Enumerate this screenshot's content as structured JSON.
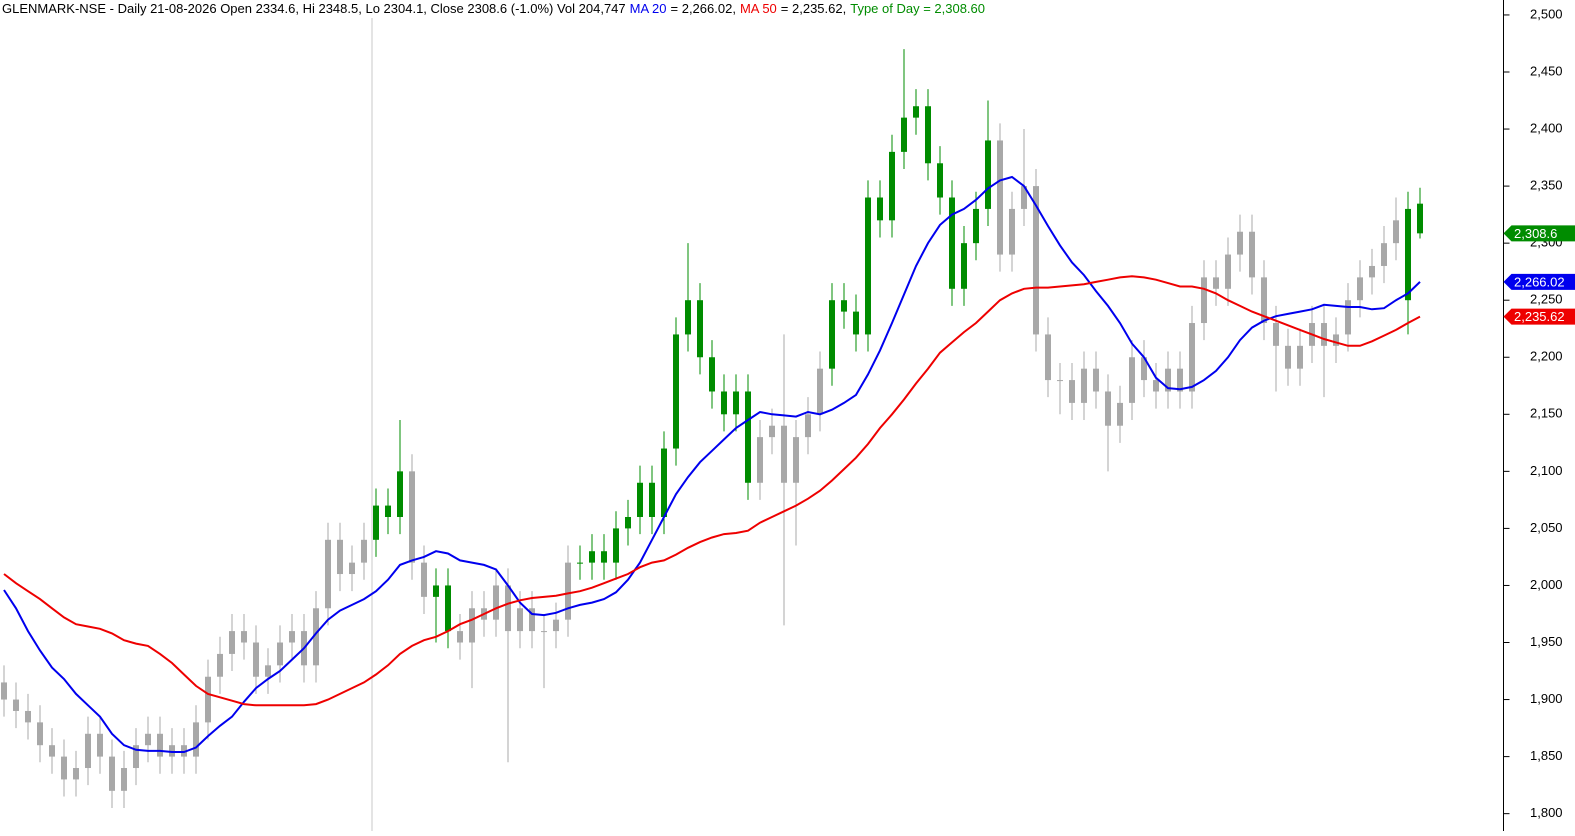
{
  "chart_data": {
    "type": "candlestick",
    "title": "GLENMARK-NSE - Daily 21-08-2026 Open 2334.6, Hi 2348.5, Lo 2304.1, Close 2308.6 (-1.0%) Vol 204,747",
    "type_of_day_label": "Type of Day = 2,308.60",
    "type_of_day_color": "#008c00",
    "open": [
      1915,
      1900,
      1890,
      1880,
      1860,
      1850,
      1830,
      1840,
      1870,
      1850,
      1820,
      1840,
      1860,
      1870,
      1850,
      1860,
      1850,
      1880,
      1920,
      1940,
      1960,
      1950,
      1920,
      1930,
      1950,
      1960,
      1930,
      1980,
      2040,
      2010,
      2020,
      2040,
      2070,
      2060,
      2100,
      2020,
      1990,
      2000,
      1960,
      1950,
      1980,
      1970,
      2000,
      1960,
      1980,
      1960,
      1960,
      1970,
      2020,
      2020,
      2030,
      2020,
      2050,
      2060,
      2090,
      2060,
      2120,
      2220,
      2250,
      2200,
      2170,
      2150,
      2170,
      2090,
      2130,
      2140,
      2090,
      2130,
      2150,
      2190,
      2250,
      2240,
      2220,
      2340,
      2320,
      2380,
      2410,
      2420,
      2370,
      2340,
      2260,
      2300,
      2330,
      2390,
      2290,
      2330,
      2350,
      2220,
      2180,
      2180,
      2160,
      2190,
      2170,
      2140,
      2160,
      2200,
      2180,
      2170,
      2190,
      2170,
      2230,
      2270,
      2260,
      2290,
      2310,
      2270,
      2230,
      2210,
      2190,
      2210,
      2230,
      2210,
      2220,
      2250,
      2270,
      2280,
      2300,
      2250,
      2334.6
    ],
    "high": [
      1930,
      1915,
      1905,
      1895,
      1875,
      1865,
      1855,
      1885,
      1885,
      1865,
      1855,
      1875,
      1885,
      1885,
      1875,
      1875,
      1895,
      1935,
      1955,
      1975,
      1975,
      1965,
      1945,
      1965,
      1975,
      1975,
      1995,
      2055,
      2055,
      2035,
      2055,
      2085,
      2085,
      2145,
      2115,
      2035,
      2015,
      2015,
      1975,
      1995,
      1995,
      2015,
      2015,
      1995,
      1995,
      1975,
      1985,
      2035,
      2035,
      2045,
      2045,
      2065,
      2075,
      2105,
      2105,
      2135,
      2235,
      2300,
      2265,
      2215,
      2185,
      2185,
      2185,
      2145,
      2155,
      2220,
      2145,
      2165,
      2205,
      2265,
      2265,
      2255,
      2355,
      2355,
      2395,
      2470,
      2435,
      2435,
      2385,
      2355,
      2315,
      2345,
      2425,
      2405,
      2345,
      2400,
      2365,
      2235,
      2195,
      2195,
      2205,
      2205,
      2185,
      2175,
      2215,
      2215,
      2195,
      2205,
      2205,
      2245,
      2285,
      2285,
      2305,
      2325,
      2325,
      2285,
      2245,
      2225,
      2225,
      2245,
      2245,
      2235,
      2265,
      2285,
      2295,
      2315,
      2340,
      2345,
      2348.5
    ],
    "low": [
      1885,
      1875,
      1865,
      1845,
      1835,
      1815,
      1815,
      1825,
      1835,
      1805,
      1805,
      1825,
      1845,
      1835,
      1835,
      1835,
      1835,
      1865,
      1905,
      1925,
      1935,
      1905,
      1905,
      1915,
      1935,
      1915,
      1915,
      1965,
      1995,
      1995,
      2005,
      2025,
      2045,
      2045,
      2005,
      1975,
      1950,
      1945,
      1935,
      1910,
      1955,
      1955,
      1845,
      1945,
      1945,
      1910,
      1945,
      1955,
      2005,
      2005,
      2005,
      2005,
      2035,
      2045,
      2045,
      2045,
      2105,
      2205,
      2185,
      2155,
      2135,
      2135,
      2075,
      2075,
      2115,
      1965,
      2035,
      2115,
      2135,
      2175,
      2225,
      2205,
      2205,
      2305,
      2305,
      2365,
      2395,
      2355,
      2325,
      2245,
      2245,
      2285,
      2315,
      2275,
      2275,
      2315,
      2205,
      2165,
      2150,
      2145,
      2145,
      2155,
      2100,
      2125,
      2145,
      2165,
      2155,
      2155,
      2155,
      2155,
      2215,
      2245,
      2245,
      2275,
      2255,
      2215,
      2170,
      2175,
      2175,
      2195,
      2165,
      2195,
      2205,
      2235,
      2255,
      2265,
      2285,
      2220,
      2304.1
    ],
    "close": [
      1900,
      1890,
      1880,
      1860,
      1850,
      1830,
      1840,
      1870,
      1850,
      1820,
      1840,
      1860,
      1870,
      1850,
      1860,
      1850,
      1880,
      1920,
      1940,
      1960,
      1950,
      1920,
      1930,
      1950,
      1960,
      1930,
      1980,
      2040,
      2010,
      2020,
      2040,
      2070,
      2060,
      2100,
      2020,
      1990,
      2000,
      1960,
      1950,
      1980,
      1970,
      2000,
      1960,
      1980,
      1960,
      1960,
      1970,
      2020,
      2020,
      2030,
      2020,
      2050,
      2060,
      2090,
      2060,
      2120,
      2220,
      2250,
      2200,
      2170,
      2150,
      2170,
      2090,
      2130,
      2140,
      2090,
      2130,
      2150,
      2190,
      2250,
      2240,
      2220,
      2340,
      2320,
      2380,
      2410,
      2420,
      2370,
      2340,
      2260,
      2300,
      2330,
      2390,
      2290,
      2330,
      2350,
      2220,
      2180,
      2180,
      2160,
      2190,
      2170,
      2140,
      2160,
      2200,
      2180,
      2170,
      2190,
      2170,
      2230,
      2270,
      2260,
      2290,
      2310,
      2270,
      2230,
      2210,
      2190,
      2210,
      2230,
      2210,
      2220,
      2250,
      2270,
      2280,
      2300,
      2320,
      2330,
      2308.6
    ],
    "colors": [
      "#a8a8a8",
      "#a8a8a8",
      "#a8a8a8",
      "#a8a8a8",
      "#a8a8a8",
      "#a8a8a8",
      "#a8a8a8",
      "#a8a8a8",
      "#a8a8a8",
      "#a8a8a8",
      "#a8a8a8",
      "#a8a8a8",
      "#a8a8a8",
      "#a8a8a8",
      "#a8a8a8",
      "#a8a8a8",
      "#a8a8a8",
      "#a8a8a8",
      "#a8a8a8",
      "#a8a8a8",
      "#a8a8a8",
      "#a8a8a8",
      "#a8a8a8",
      "#a8a8a8",
      "#a8a8a8",
      "#a8a8a8",
      "#a8a8a8",
      "#a8a8a8",
      "#a8a8a8",
      "#a8a8a8",
      "#a8a8a8",
      "#008c00",
      "#008c00",
      "#008c00",
      "#a8a8a8",
      "#a8a8a8",
      "#008c00",
      "#008c00",
      "#a8a8a8",
      "#a8a8a8",
      "#a8a8a8",
      "#a8a8a8",
      "#a8a8a8",
      "#a8a8a8",
      "#a8a8a8",
      "#a8a8a8",
      "#a8a8a8",
      "#a8a8a8",
      "#008c00",
      "#008c00",
      "#008c00",
      "#008c00",
      "#008c00",
      "#008c00",
      "#008c00",
      "#008c00",
      "#008c00",
      "#008c00",
      "#008c00",
      "#008c00",
      "#008c00",
      "#008c00",
      "#008c00",
      "#a8a8a8",
      "#a8a8a8",
      "#a8a8a8",
      "#a8a8a8",
      "#a8a8a8",
      "#a8a8a8",
      "#008c00",
      "#008c00",
      "#008c00",
      "#008c00",
      "#008c00",
      "#008c00",
      "#008c00",
      "#008c00",
      "#008c00",
      "#008c00",
      "#008c00",
      "#008c00",
      "#008c00",
      "#008c00",
      "#a8a8a8",
      "#a8a8a8",
      "#a8a8a8",
      "#a8a8a8",
      "#a8a8a8",
      "#a8a8a8",
      "#a8a8a8",
      "#a8a8a8",
      "#a8a8a8",
      "#a8a8a8",
      "#a8a8a8",
      "#a8a8a8",
      "#a8a8a8",
      "#a8a8a8",
      "#a8a8a8",
      "#a8a8a8",
      "#a8a8a8",
      "#a8a8a8",
      "#a8a8a8",
      "#a8a8a8",
      "#a8a8a8",
      "#a8a8a8",
      "#a8a8a8",
      "#a8a8a8",
      "#a8a8a8",
      "#a8a8a8",
      "#a8a8a8",
      "#a8a8a8",
      "#a8a8a8",
      "#a8a8a8",
      "#a8a8a8",
      "#a8a8a8",
      "#a8a8a8",
      "#a8a8a8",
      "#008c00",
      "#008c00"
    ],
    "series": [
      {
        "name": "MA 20",
        "color": "#0000ee",
        "header_label": "= 2,266.02,",
        "values": [
          1996,
          1980,
          1960,
          1943,
          1928,
          1918,
          1905,
          1895,
          1885,
          1870,
          1860,
          1856,
          1855,
          1855,
          1854,
          1854,
          1858,
          1868,
          1877,
          1885,
          1898,
          1910,
          1918,
          1925,
          1935,
          1945,
          1958,
          1970,
          1978,
          1983,
          1988,
          1995,
          2005,
          2018,
          2022,
          2025,
          2030,
          2028,
          2022,
          2020,
          2018,
          2014,
          2000,
          1985,
          1975,
          1974,
          1976,
          1980,
          1983,
          1985,
          1988,
          1994,
          2005,
          2020,
          2040,
          2060,
          2080,
          2095,
          2108,
          2118,
          2128,
          2138,
          2145,
          2152,
          2150,
          2149,
          2148,
          2152,
          2150,
          2154,
          2160,
          2167,
          2185,
          2206,
          2230,
          2255,
          2280,
          2300,
          2316,
          2325,
          2330,
          2338,
          2348,
          2355,
          2358,
          2350,
          2333,
          2315,
          2298,
          2283,
          2272,
          2258,
          2245,
          2230,
          2212,
          2200,
          2182,
          2173,
          2172,
          2174,
          2180,
          2188,
          2200,
          2215,
          2226,
          2232,
          2236,
          2238,
          2240,
          2242,
          2246,
          2245,
          2244,
          2244,
          2242,
          2243,
          2250,
          2256,
          2266.02
        ]
      },
      {
        "name": "MA 50",
        "color": "#ee0000",
        "header_label": "= 2,235.62,",
        "values": [
          2010,
          2002,
          1995,
          1988,
          1980,
          1972,
          1966,
          1964,
          1962,
          1958,
          1952,
          1949,
          1947,
          1940,
          1932,
          1922,
          1912,
          1905,
          1902,
          1899,
          1896,
          1895,
          1895,
          1895,
          1895,
          1895,
          1896,
          1900,
          1905,
          1910,
          1915,
          1922,
          1930,
          1940,
          1947,
          1952,
          1955,
          1960,
          1966,
          1970,
          1975,
          1980,
          1984,
          1987,
          1989,
          1990,
          1991,
          1993,
          1995,
          1998,
          2002,
          2006,
          2010,
          2016,
          2020,
          2022,
          2027,
          2033,
          2038,
          2042,
          2045,
          2046,
          2048,
          2055,
          2060,
          2065,
          2070,
          2076,
          2083,
          2092,
          2102,
          2112,
          2124,
          2138,
          2150,
          2163,
          2177,
          2190,
          2204,
          2213,
          2222,
          2230,
          2240,
          2250,
          2256,
          2260,
          2261,
          2261,
          2262,
          2263,
          2264,
          2266,
          2268,
          2270,
          2271,
          2270,
          2268,
          2265,
          2262,
          2262,
          2260,
          2256,
          2250,
          2245,
          2240,
          2236,
          2232,
          2228,
          2224,
          2220,
          2216,
          2213,
          2210,
          2210,
          2214,
          2219,
          2224,
          2230,
          2235.62
        ]
      }
    ],
    "last_value_labels": [
      {
        "value": 2308.6,
        "label": "2,308.6",
        "color": "#008c00"
      },
      {
        "value": 2266.02,
        "label": "2,266.02",
        "color": "#0000ee"
      },
      {
        "value": 2235.62,
        "label": "2,235.62",
        "color": "#ee0000"
      }
    ],
    "ylim": [
      1784.8,
      2513.1
    ],
    "yticks": [
      {
        "value": 1800,
        "label": "1,800"
      },
      {
        "value": 1850,
        "label": "1,850"
      },
      {
        "value": 1900,
        "label": "1,900"
      },
      {
        "value": 1950,
        "label": "1,950"
      },
      {
        "value": 2000,
        "label": "2,000"
      },
      {
        "value": 2050,
        "label": "2,050"
      },
      {
        "value": 2100,
        "label": "2,100"
      },
      {
        "value": 2150,
        "label": "2,150"
      },
      {
        "value": 2200,
        "label": "2,200"
      },
      {
        "value": 2250,
        "label": "2,250"
      },
      {
        "value": 2300,
        "label": "2,300"
      },
      {
        "value": 2350,
        "label": "2,350"
      },
      {
        "value": 2400,
        "label": "2,400"
      },
      {
        "value": 2450,
        "label": "2,450"
      },
      {
        "value": 2500,
        "label": "2,500"
      }
    ]
  }
}
